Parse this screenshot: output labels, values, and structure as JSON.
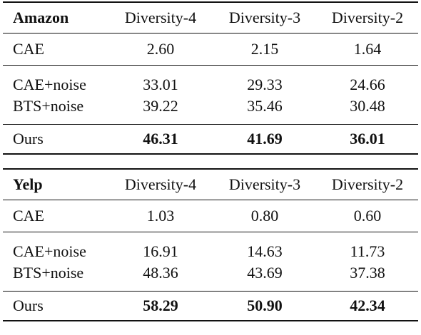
{
  "tables": [
    {
      "dataset": "Amazon",
      "columns": [
        "Diversity-4",
        "Diversity-3",
        "Diversity-2"
      ],
      "rows": [
        {
          "method": "CAE",
          "values": [
            "2.60",
            "2.15",
            "1.64"
          ]
        },
        {
          "method": "CAE+noise",
          "values": [
            "33.01",
            "29.33",
            "24.66"
          ]
        },
        {
          "method": "BTS+noise",
          "values": [
            "39.22",
            "35.46",
            "30.48"
          ]
        },
        {
          "method": "Ours",
          "values": [
            "46.31",
            "41.69",
            "36.01"
          ]
        }
      ]
    },
    {
      "dataset": "Yelp",
      "columns": [
        "Diversity-4",
        "Diversity-3",
        "Diversity-2"
      ],
      "rows": [
        {
          "method": "CAE",
          "values": [
            "1.03",
            "0.80",
            "0.60"
          ]
        },
        {
          "method": "CAE+noise",
          "values": [
            "16.91",
            "14.63",
            "11.73"
          ]
        },
        {
          "method": "BTS+noise",
          "values": [
            "48.36",
            "43.69",
            "37.38"
          ]
        },
        {
          "method": "Ours",
          "values": [
            "58.29",
            "50.90",
            "42.34"
          ]
        }
      ]
    }
  ]
}
